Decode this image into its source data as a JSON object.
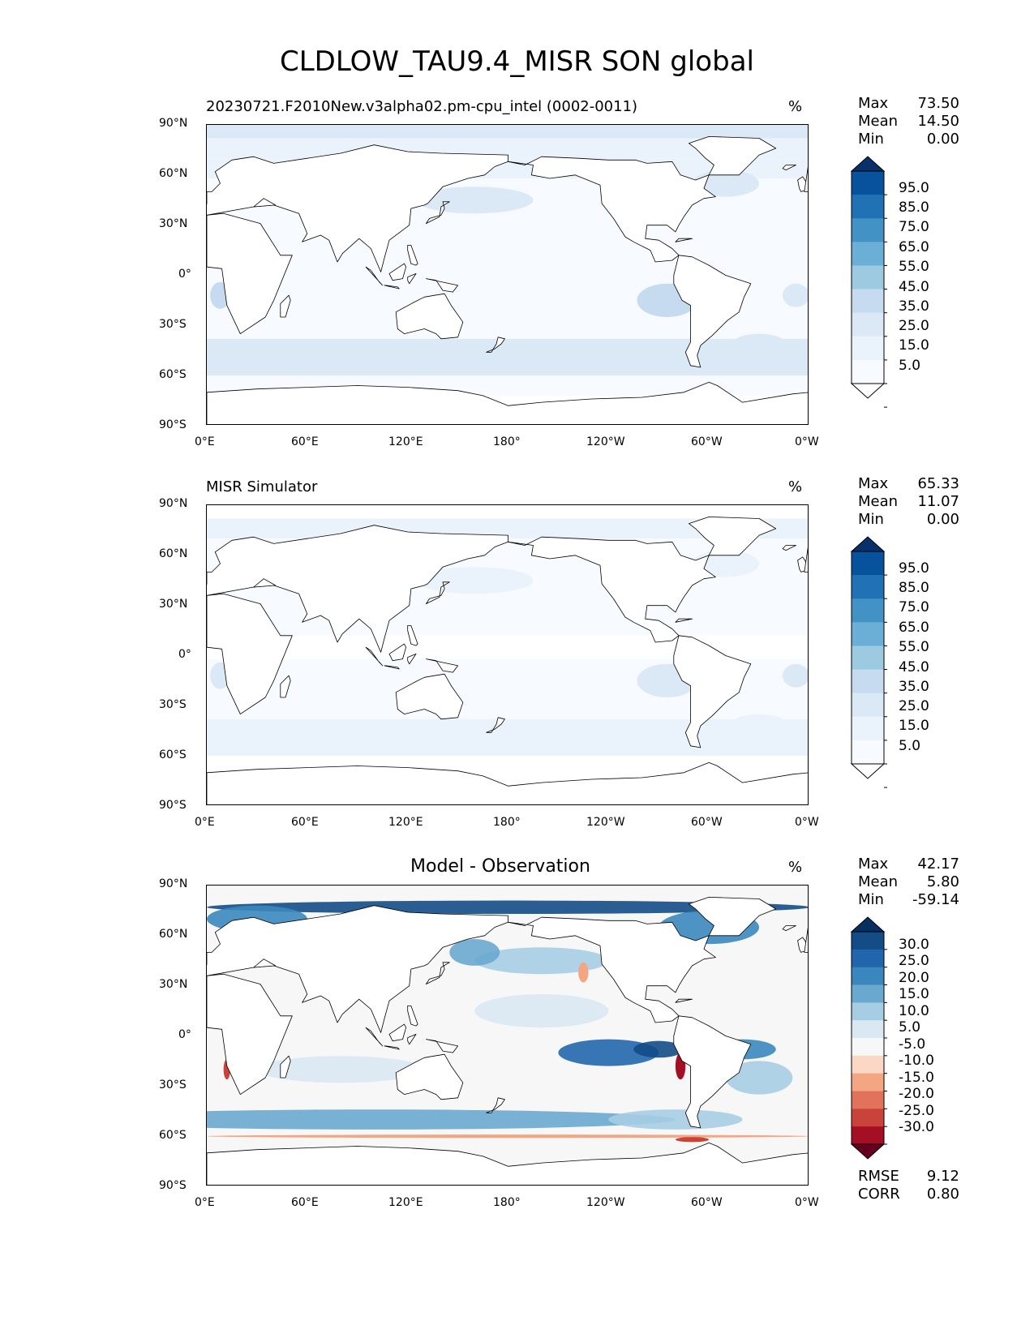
{
  "title": "CLDLOW_TAU9.4_MISR SON global",
  "chart_data": [
    {
      "type": "heatmap",
      "panel_title": "20230721.F2010New.v3alpha02.pm-cpu_intel (0002-0011)",
      "units": "%",
      "x_ticks": [
        "0°E",
        "60°E",
        "120°E",
        "180°",
        "120°W",
        "60°W",
        "0°W"
      ],
      "y_ticks": [
        "90°N",
        "60°N",
        "30°N",
        "0°",
        "30°S",
        "60°S",
        "90°S"
      ],
      "xlim": [
        0,
        360
      ],
      "ylim": [
        -90,
        90
      ],
      "stats": [
        {
          "label": "Max",
          "value": "73.50"
        },
        {
          "label": "Mean",
          "value": "14.50"
        },
        {
          "label": "Min",
          "value": "0.00"
        }
      ],
      "colorbar": {
        "labels": [
          "95.0",
          "85.0",
          "75.0",
          "65.0",
          "55.0",
          "45.0",
          "35.0",
          "25.0",
          "15.0",
          "5.0"
        ],
        "colors": [
          "#08306b",
          "#08519c",
          "#2171b5",
          "#4292c6",
          "#6baed6",
          "#9ecae1",
          "#c6dbef",
          "#dbe9f6",
          "#eaf3fb",
          "#f7fbff",
          "#ffffff"
        ]
      },
      "field_scale": 1.0
    },
    {
      "type": "heatmap",
      "panel_title": "MISR Simulator",
      "units": "%",
      "x_ticks": [
        "0°E",
        "60°E",
        "120°E",
        "180°",
        "120°W",
        "60°W",
        "0°W"
      ],
      "y_ticks": [
        "90°N",
        "60°N",
        "30°N",
        "0°",
        "30°S",
        "60°S",
        "90°S"
      ],
      "xlim": [
        0,
        360
      ],
      "ylim": [
        -90,
        90
      ],
      "stats": [
        {
          "label": "Max",
          "value": "65.33"
        },
        {
          "label": "Mean",
          "value": "11.07"
        },
        {
          "label": "Min",
          "value": "0.00"
        }
      ],
      "colorbar": {
        "labels": [
          "95.0",
          "85.0",
          "75.0",
          "65.0",
          "55.0",
          "45.0",
          "35.0",
          "25.0",
          "15.0",
          "5.0"
        ],
        "colors": [
          "#08306b",
          "#08519c",
          "#2171b5",
          "#4292c6",
          "#6baed6",
          "#9ecae1",
          "#c6dbef",
          "#dbe9f6",
          "#eaf3fb",
          "#f7fbff",
          "#ffffff"
        ]
      },
      "field_scale": 0.75
    },
    {
      "type": "heatmap",
      "panel_title": "Model - Observation",
      "units": "%",
      "x_ticks": [
        "0°E",
        "60°E",
        "120°E",
        "180°",
        "120°W",
        "60°W",
        "0°W"
      ],
      "y_ticks": [
        "90°N",
        "60°N",
        "30°N",
        "0°",
        "30°S",
        "60°S",
        "90°S"
      ],
      "xlim": [
        0,
        360
      ],
      "ylim": [
        -90,
        90
      ],
      "stats": [
        {
          "label": "Max",
          "value": "42.17"
        },
        {
          "label": "Mean",
          "value": "5.80"
        },
        {
          "label": "Min",
          "value": "-59.14"
        }
      ],
      "colorbar": {
        "labels": [
          "30.0",
          "25.0",
          "20.0",
          "15.0",
          "10.0",
          "5.0",
          "-5.0",
          "-10.0",
          "-15.0",
          "-20.0",
          "-25.0",
          "-30.0"
        ],
        "colors": [
          "#053061",
          "#134c87",
          "#2166ac",
          "#3a87bd",
          "#6aa8d0",
          "#a6cde3",
          "#d9e8f2",
          "#f7f7f7",
          "#fbd8c6",
          "#f4a582",
          "#e1735d",
          "#c9433a",
          "#a50f25",
          "#67001f"
        ]
      },
      "metrics": [
        {
          "label": "RMSE",
          "value": "9.12"
        },
        {
          "label": "CORR",
          "value": "0.80"
        }
      ],
      "field_scale": 1.0
    }
  ]
}
